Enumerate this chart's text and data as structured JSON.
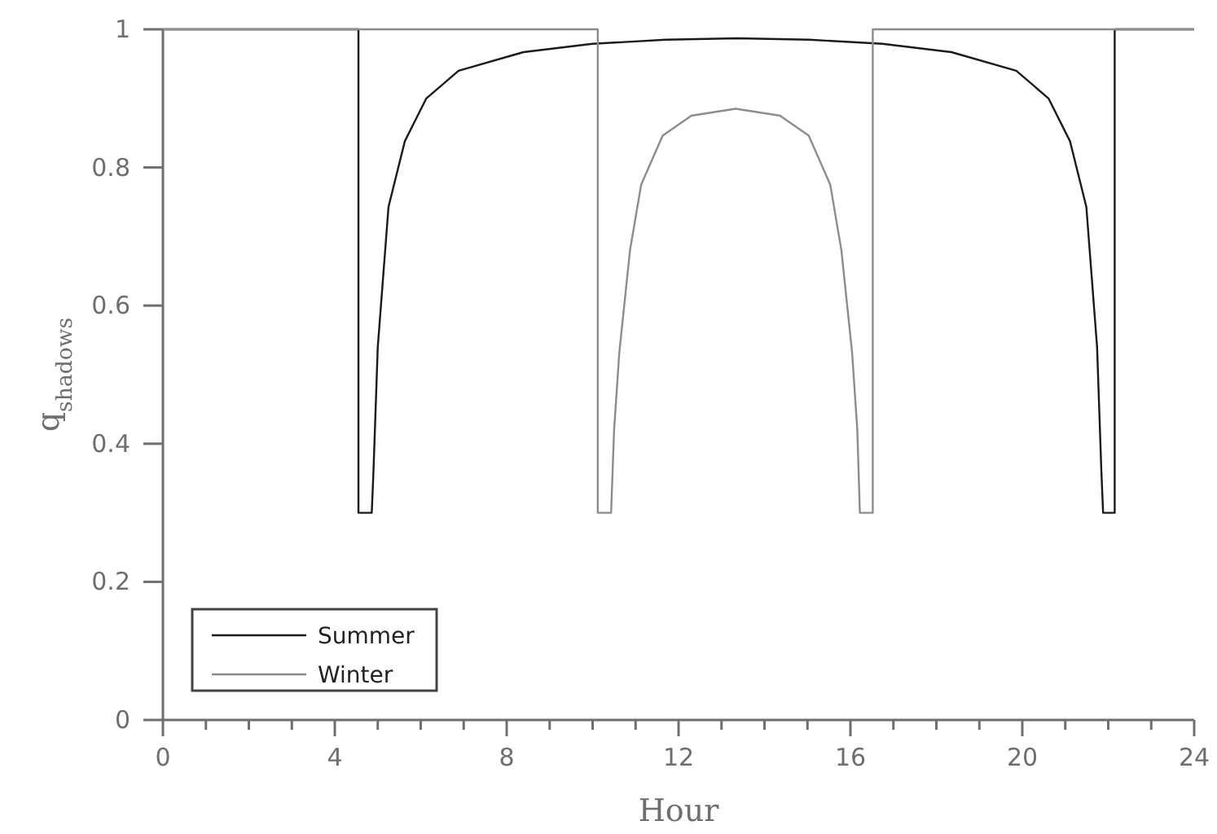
{
  "chart_data": {
    "type": "line",
    "xlabel": "Hour",
    "ylabel": "q$_{shadows}$",
    "xlim": [
      0,
      24
    ],
    "ylim": [
      0,
      1
    ],
    "xticks": [
      0,
      {
        "value": 1,
        "label": null
      },
      {
        "value": 2,
        "label": null
      },
      {
        "value": 3,
        "label": null
      },
      4,
      {
        "value": 5,
        "label": null
      },
      {
        "value": 6,
        "label": null
      },
      {
        "value": 7,
        "label": null
      },
      8,
      {
        "value": 9,
        "label": null
      },
      {
        "value": 10,
        "label": null
      },
      {
        "value": 11,
        "label": null
      },
      12,
      {
        "value": 13,
        "label": null
      },
      {
        "value": 14,
        "label": null
      },
      {
        "value": 15,
        "label": null
      },
      16,
      {
        "value": 17,
        "label": null
      },
      {
        "value": 18,
        "label": null
      },
      {
        "value": 19,
        "label": null
      },
      20,
      {
        "value": 21,
        "label": null
      },
      {
        "value": 22,
        "label": null
      },
      {
        "value": 23,
        "label": null
      },
      24
    ],
    "yticks": [
      0,
      0.2,
      0.4,
      0.6,
      0.8,
      1
    ],
    "grid": false,
    "legend": "bottom left",
    "line_style": "solid",
    "series": [
      {
        "name": "Summer",
        "color": "#1a1a1a",
        "x": [
          0,
          4.55,
          4.55,
          4.86,
          4.9,
          5.0,
          5.25,
          5.63,
          6.13,
          6.88,
          8.39,
          10,
          11.7,
          13.37,
          15.04,
          16.74,
          18.35,
          19.86,
          20.61,
          21.11,
          21.49,
          21.74,
          21.84,
          21.88,
          22.15,
          22.15,
          24
        ],
        "values": [
          1,
          1,
          0.3,
          0.3,
          0.36,
          0.54,
          0.743,
          0.838,
          0.9,
          0.94,
          0.967,
          0.979,
          0.985,
          0.987,
          0.985,
          0.979,
          0.967,
          0.94,
          0.9,
          0.838,
          0.743,
          0.54,
          0.36,
          0.3,
          0.3,
          1,
          1
        ]
      },
      {
        "name": "Winter",
        "color": "#8c8c8c",
        "x": [
          0,
          10.12,
          10.12,
          10.43,
          10.5,
          10.62,
          10.87,
          11.13,
          11.63,
          12.3,
          13.33,
          14.36,
          15.03,
          15.53,
          15.79,
          16.04,
          16.16,
          16.22,
          16.52,
          16.52,
          24
        ],
        "values": [
          1,
          1,
          0.3,
          0.3,
          0.42,
          0.531,
          0.68,
          0.775,
          0.846,
          0.875,
          0.885,
          0.875,
          0.846,
          0.775,
          0.68,
          0.531,
          0.42,
          0.3,
          0.3,
          1,
          1
        ]
      }
    ]
  }
}
